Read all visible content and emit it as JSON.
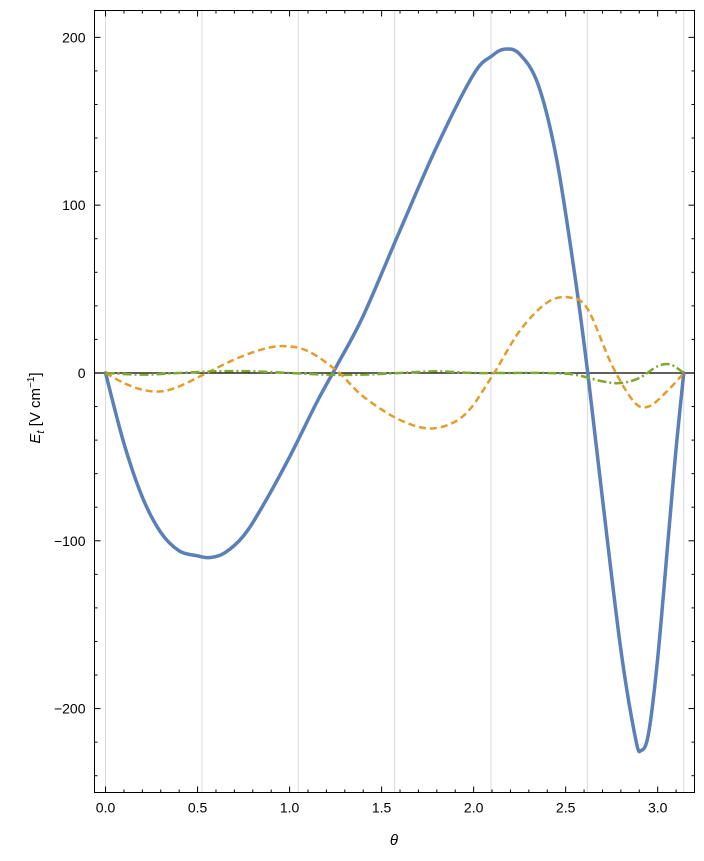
{
  "chart_data": {
    "type": "line",
    "xlabel": "θ",
    "ylabel": {
      "main": "E",
      "subscript": "t",
      "unit_prefix": " [V cm",
      "unit_exp": "−1",
      "unit_suffix": "]"
    },
    "xlim": [
      -0.06,
      3.2
    ],
    "ylim": [
      -250,
      216
    ],
    "xticks": [
      0.0,
      0.5,
      1.0,
      1.5,
      2.0,
      2.5,
      3.0
    ],
    "xtick_labels": [
      "0.0",
      "0.5",
      "1.0",
      "1.5",
      "2.0",
      "2.5",
      "3.0"
    ],
    "yticks": [
      -200,
      -100,
      0,
      100,
      200
    ],
    "ytick_labels": [
      "−200",
      "−100",
      "0",
      "100",
      "200"
    ],
    "vertical_gridlines": [
      0.0,
      0.5236,
      1.0472,
      1.5708,
      2.0944,
      2.618,
      3.1416
    ],
    "zero_line": true,
    "series": [
      {
        "color": "#5b7fb8",
        "style": "solid",
        "x": [
          0.0,
          0.1,
          0.2,
          0.3,
          0.4,
          0.5,
          0.57,
          0.65,
          0.75,
          0.85,
          1.0,
          1.15,
          1.26,
          1.4,
          1.6,
          1.8,
          2.0,
          2.1,
          2.17,
          2.25,
          2.35,
          2.45,
          2.55,
          2.62,
          2.7,
          2.8,
          2.88,
          2.91,
          2.95,
          3.0,
          3.06,
          3.1,
          3.1416
        ],
        "y": [
          0,
          -42,
          -74,
          -95,
          -106,
          -109,
          -110,
          -107,
          -97,
          -80,
          -50,
          -17,
          5,
          34,
          85,
          135,
          178,
          189,
          193,
          190,
          172,
          128,
          58,
          0,
          -75,
          -165,
          -218,
          -225,
          -215,
          -170,
          -95,
          -45,
          0
        ]
      },
      {
        "color": "#e39d2c",
        "style": "dashed",
        "x": [
          0.0,
          0.1,
          0.2,
          0.3,
          0.4,
          0.55,
          0.7,
          0.85,
          0.97,
          1.1,
          1.26,
          1.4,
          1.6,
          1.78,
          1.95,
          2.1,
          2.25,
          2.4,
          2.52,
          2.62,
          2.75,
          2.87,
          2.95,
          3.05,
          3.1416
        ],
        "y": [
          0,
          -6,
          -10,
          -11,
          -8,
          0,
          8,
          14,
          16,
          13,
          1,
          -14,
          -28,
          -33,
          -25,
          -2,
          25,
          42,
          45,
          38,
          5,
          -17,
          -20,
          -11,
          0
        ]
      },
      {
        "color": "#7fa82e",
        "style": "dashdot",
        "x": [
          0.0,
          0.2,
          0.4,
          0.6,
          0.8,
          1.0,
          1.2,
          1.4,
          1.6,
          1.8,
          2.0,
          2.2,
          2.4,
          2.55,
          2.7,
          2.8,
          2.9,
          3.0,
          3.07,
          3.1416
        ],
        "y": [
          0,
          -1,
          0,
          1,
          1,
          0,
          -1,
          -1,
          0,
          1,
          0,
          0,
          0,
          -1,
          -5,
          -6,
          -3,
          4,
          5,
          0
        ]
      }
    ]
  }
}
